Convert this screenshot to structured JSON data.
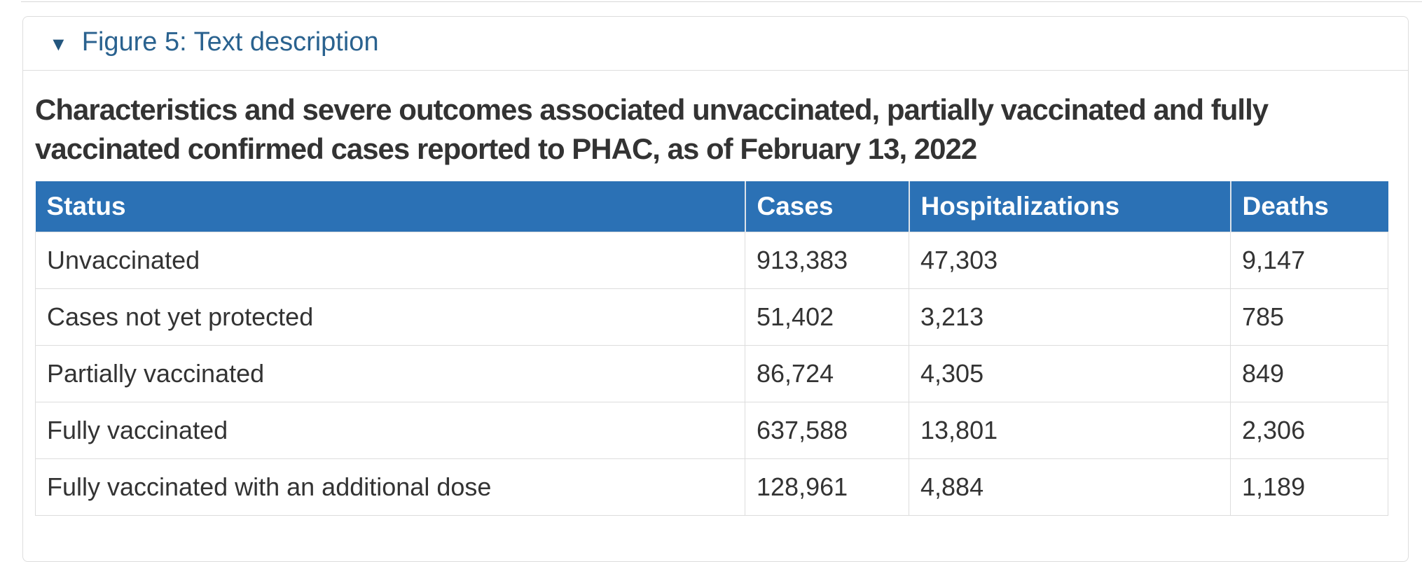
{
  "details": {
    "summary_label": "Figure 5: Text description"
  },
  "icons": {
    "expander": "▼"
  },
  "figure": {
    "title": "Characteristics and severe outcomes associated unvaccinated, partially vaccinated and fully vaccinated confirmed cases reported to PHAC, as of February 13, 2022"
  },
  "table": {
    "columns": [
      "Status",
      "Cases",
      "Hospitalizations",
      "Deaths"
    ],
    "rows": [
      [
        "Unvaccinated",
        "913,383",
        "47,303",
        "9,147"
      ],
      [
        "Cases not yet protected",
        "51,402",
        "3,213",
        "785"
      ],
      [
        "Partially vaccinated",
        "86,724",
        "4,305",
        "849"
      ],
      [
        "Fully vaccinated",
        "637,588",
        "13,801",
        "2,306"
      ],
      [
        "Fully vaccinated with an additional dose",
        "128,961",
        "4,884",
        "1,189"
      ]
    ]
  },
  "colors": {
    "table_header_bg": "#2b71b5",
    "table_header_text": "#ffffff",
    "summary_link_text": "#2a628f",
    "title_text": "#333333",
    "border": "#dddddd"
  }
}
